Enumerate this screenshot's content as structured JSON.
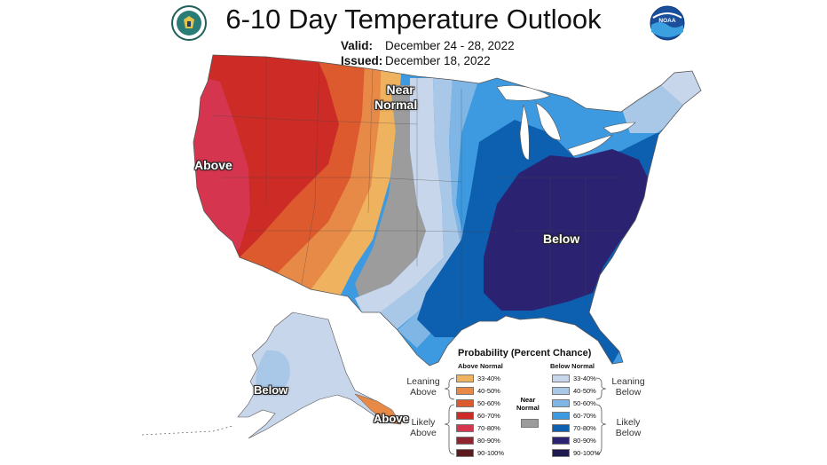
{
  "header": {
    "title": "6-10 Day Temperature Outlook",
    "valid_label": "Valid:",
    "valid_value": "December 24 - 28, 2022",
    "issued_label": "Issued:",
    "issued_value": "December 18, 2022",
    "left_logo": "doc-seal-icon",
    "right_logo": "noaa-logo-icon",
    "noaa_text": "NOAA"
  },
  "map_labels": {
    "above": "Above",
    "near_normal_line1": "Near",
    "near_normal_line2": "Normal",
    "below": "Below",
    "alaska_below": "Below",
    "alaska_above": "Above"
  },
  "legend": {
    "title": "Probability (Percent Chance)",
    "above_header": "Above Normal",
    "below_header": "Below Normal",
    "above_items": [
      {
        "range": "33-40%",
        "color": "#efb35f"
      },
      {
        "range": "40-50%",
        "color": "#e88a47"
      },
      {
        "range": "50-60%",
        "color": "#dd5a2e"
      },
      {
        "range": "60-70%",
        "color": "#cc2c25"
      },
      {
        "range": "70-80%",
        "color": "#d63550"
      },
      {
        "range": "80-90%",
        "color": "#8f2530"
      },
      {
        "range": "90-100%",
        "color": "#5a1a1e"
      }
    ],
    "below_items": [
      {
        "range": "33-40%",
        "color": "#c7d6ea"
      },
      {
        "range": "40-50%",
        "color": "#a9c8e8"
      },
      {
        "range": "50-60%",
        "color": "#7fb6e6"
      },
      {
        "range": "60-70%",
        "color": "#3d9ae0"
      },
      {
        "range": "70-80%",
        "color": "#0d5fb0"
      },
      {
        "range": "80-90%",
        "color": "#2b2372"
      },
      {
        "range": "90-100%",
        "color": "#1e1a4f"
      }
    ],
    "leaning_above": "Leaning Above",
    "likely_above": "Likely Above",
    "leaning_below": "Leaning Below",
    "likely_below": "Likely Below",
    "near_normal_line1": "Near",
    "near_normal_line2": "Normal",
    "near_normal_color": "#9c9c9c"
  }
}
